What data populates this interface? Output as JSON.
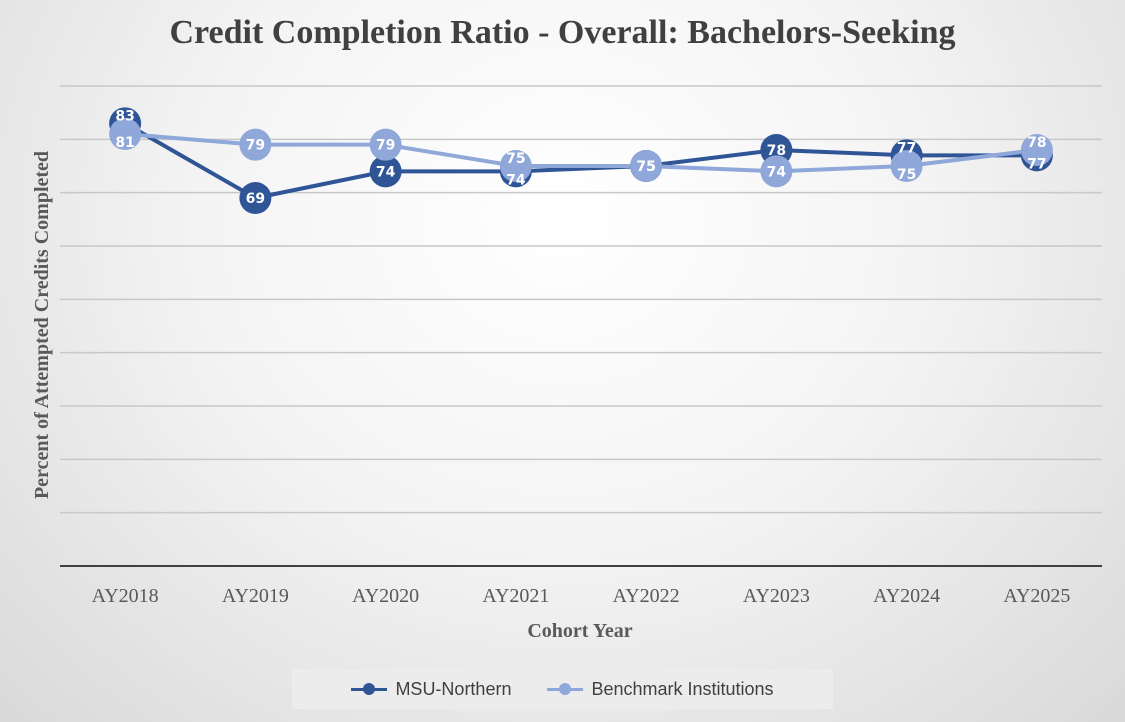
{
  "chart_data": {
    "type": "line",
    "title": "Credit Completion Ratio - Overall: Bachelors-Seeking",
    "xlabel": "Cohort Year",
    "ylabel": "Percent of  Attempted Credits Completed",
    "categories": [
      "AY2018",
      "AY2019",
      "AY2020",
      "AY2021",
      "AY2022",
      "AY2023",
      "AY2024",
      "AY2025"
    ],
    "ylim": [
      0,
      90
    ],
    "grid": true,
    "legend_position": "bottom",
    "series": [
      {
        "name": "MSU-Northern",
        "color": "#2f5597",
        "values": [
          83,
          69,
          74,
          74,
          75,
          78,
          77,
          77
        ]
      },
      {
        "name": "Benchmark Institutions",
        "color": "#8fa7d9",
        "values": [
          81,
          79,
          79,
          75,
          75,
          74,
          75,
          78
        ]
      }
    ]
  }
}
